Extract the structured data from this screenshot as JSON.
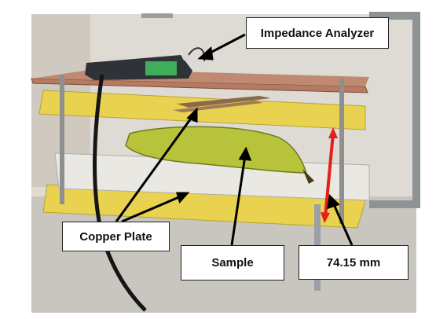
{
  "labels": {
    "analyzer": "Impedance Analyzer",
    "copper": "Copper Plate",
    "sample": "Sample",
    "measurement": "74.15 mm"
  },
  "colors": {
    "board_yellow": "#e8d24f",
    "board_copper": "#b47a62",
    "banana": "#b7c33a",
    "measure_arrow": "#e3201b",
    "analyzer_body": "#2f3338"
  }
}
